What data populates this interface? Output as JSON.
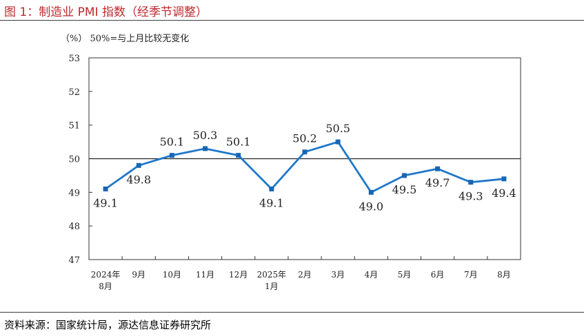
{
  "figure": {
    "title": "图 1：制造业 PMI 指数（经季节调整）",
    "source": "资料来源：国家统计局，源达信息证券研究所"
  },
  "chart_data": {
    "type": "line",
    "unit_note": "（%） 50%=与上月比较无变化",
    "x_labels": [
      [
        "2024年",
        "8月"
      ],
      [
        "9月"
      ],
      [
        "10月"
      ],
      [
        "11月"
      ],
      [
        "12月"
      ],
      [
        "2025年",
        "1月"
      ],
      [
        "2月"
      ],
      [
        "3月"
      ],
      [
        "4月"
      ],
      [
        "5月"
      ],
      [
        "6月"
      ],
      [
        "7月"
      ],
      [
        "8月"
      ]
    ],
    "series": [
      {
        "values": [
          49.1,
          49.8,
          50.1,
          50.3,
          50.1,
          49.1,
          50.2,
          50.5,
          49.0,
          49.5,
          49.7,
          49.3,
          49.4
        ]
      }
    ],
    "data_labels": [
      "49.1",
      "49.8",
      "50.1",
      "50.3",
      "50.1",
      "49.1",
      "50.2",
      "50.5",
      "49.0",
      "49.5",
      "49.7",
      "49.3",
      "49.4"
    ],
    "ylim": [
      47,
      53
    ],
    "yticks": [
      "47",
      "48",
      "49",
      "50",
      "51",
      "52",
      "53"
    ],
    "reference_line": 50,
    "grid": false,
    "legend": "none",
    "colors": {
      "line": "#1f77c9",
      "marker": "#1866b4",
      "reference": "#222222",
      "axis": "#333333"
    }
  }
}
